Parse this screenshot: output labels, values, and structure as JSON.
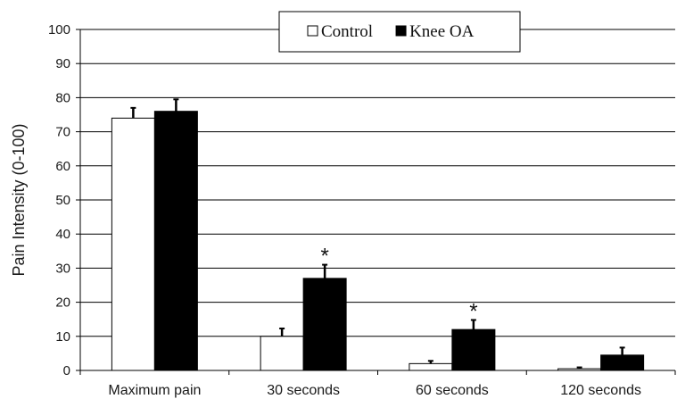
{
  "chart_data": {
    "type": "bar",
    "ylabel": "Pain Intensity (0-100)",
    "xlabel": "",
    "ylim": [
      0,
      100
    ],
    "yticks": [
      0,
      10,
      20,
      30,
      40,
      50,
      60,
      70,
      80,
      90,
      100
    ],
    "grid": true,
    "legend_position": "top-center",
    "categories": [
      "Maximum pain",
      "30 seconds",
      "60 seconds",
      "120 seconds"
    ],
    "series": [
      {
        "name": "Control",
        "color": "#ffffff",
        "values": [
          74,
          10,
          2,
          0.5
        ],
        "errors": [
          3,
          2.3,
          0.8,
          0.4
        ]
      },
      {
        "name": "Knee OA",
        "color": "#000000",
        "values": [
          76,
          27,
          12,
          4.5
        ],
        "errors": [
          3.5,
          4,
          2.8,
          2.2
        ]
      }
    ],
    "annotations": [
      {
        "text": "*",
        "category": "30 seconds",
        "series": "Knee OA"
      },
      {
        "text": "*",
        "category": "60 seconds",
        "series": "Knee OA"
      }
    ]
  }
}
